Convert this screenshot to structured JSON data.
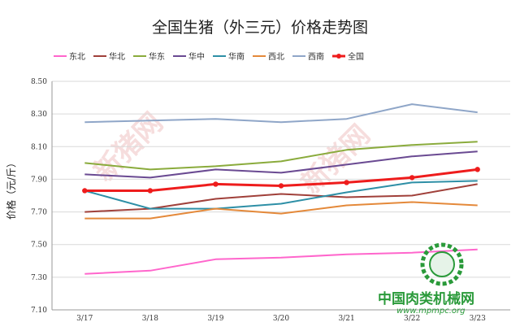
{
  "chart_data": {
    "type": "line",
    "title": "全国生猪（外三元）价格走势图",
    "ylabel": "价格（元/斤）",
    "xlabel": "",
    "ylim": [
      7.1,
      8.5
    ],
    "yticks": [
      "8.50",
      "8.30",
      "8.10",
      "7.90",
      "7.70",
      "7.50",
      "7.30",
      "7.10"
    ],
    "categories": [
      "3/17",
      "3/18",
      "3/19",
      "3/20",
      "3/21",
      "3/22",
      "3/23"
    ],
    "legend_position": "top",
    "grid": true,
    "series": [
      {
        "name": "东北",
        "color": "#ff66cc",
        "values": [
          7.32,
          7.34,
          7.41,
          7.42,
          7.44,
          7.45,
          7.47
        ]
      },
      {
        "name": "华北",
        "color": "#a0403a",
        "values": [
          7.7,
          7.72,
          7.78,
          7.81,
          7.79,
          7.8,
          7.87
        ]
      },
      {
        "name": "华东",
        "color": "#8aab3c",
        "values": [
          8.0,
          7.96,
          7.98,
          8.01,
          8.08,
          8.11,
          8.13
        ]
      },
      {
        "name": "华中",
        "color": "#6a4a92",
        "values": [
          7.93,
          7.91,
          7.96,
          7.94,
          7.99,
          8.04,
          8.07
        ]
      },
      {
        "name": "华南",
        "color": "#2e8fa6",
        "values": [
          7.83,
          7.72,
          7.72,
          7.75,
          7.82,
          7.88,
          7.89
        ]
      },
      {
        "name": "西北",
        "color": "#e4893a",
        "values": [
          7.66,
          7.66,
          7.72,
          7.69,
          7.74,
          7.76,
          7.74
        ]
      },
      {
        "name": "西南",
        "color": "#8fa6c8",
        "values": [
          8.25,
          8.26,
          8.27,
          8.25,
          8.27,
          8.36,
          8.31
        ]
      },
      {
        "name": "全国",
        "color": "#ee1c1c",
        "values": [
          7.83,
          7.83,
          7.87,
          7.86,
          7.88,
          7.91,
          7.96
        ],
        "markers": true
      }
    ]
  },
  "watermark": {
    "text": "新猪网",
    "color": "#e8a0a0"
  },
  "brand": {
    "name": "中国肉类机械网",
    "url": "www.mpmpc.org"
  }
}
